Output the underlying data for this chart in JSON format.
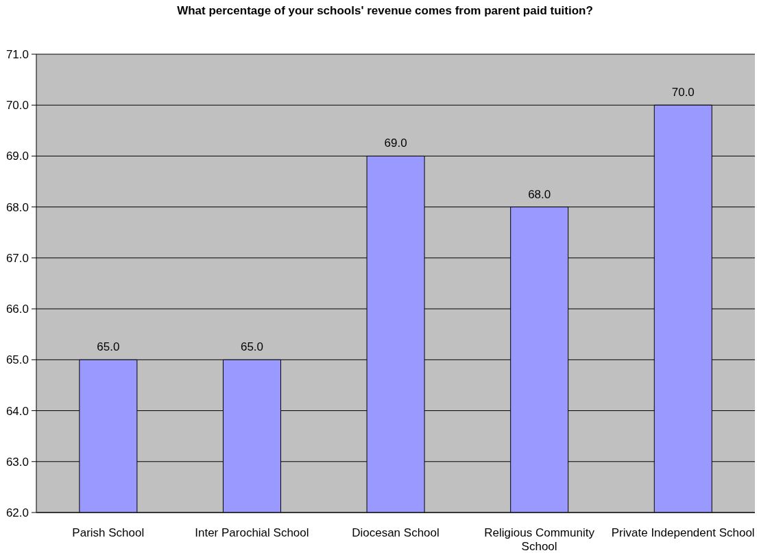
{
  "chart_data": {
    "type": "bar",
    "title": "What percentage of your schools' revenue comes from parent paid tuition?",
    "categories": [
      "Parish School",
      "Inter Parochial School",
      "Diocesan School",
      "Religious Community School",
      "Private Independent School"
    ],
    "values": [
      65,
      65,
      69,
      68,
      70
    ],
    "color": "#9999ff",
    "value_labels": [
      "65.0",
      "65.0",
      "69.0",
      "68.0",
      "70.0"
    ],
    "ylim": [
      62,
      71
    ],
    "yticks": [
      {
        "value": 62,
        "label": "62.0"
      },
      {
        "value": 63,
        "label": "63.0"
      },
      {
        "value": 64,
        "label": "64.0"
      },
      {
        "value": 65,
        "label": "65.0"
      },
      {
        "value": 66,
        "label": "66.0"
      },
      {
        "value": 67,
        "label": "67.0"
      },
      {
        "value": 68,
        "label": "68.0"
      },
      {
        "value": 69,
        "label": "69.0"
      },
      {
        "value": 70,
        "label": "70.0"
      },
      {
        "value": 71,
        "label": "71.0"
      }
    ],
    "grid": "y"
  }
}
